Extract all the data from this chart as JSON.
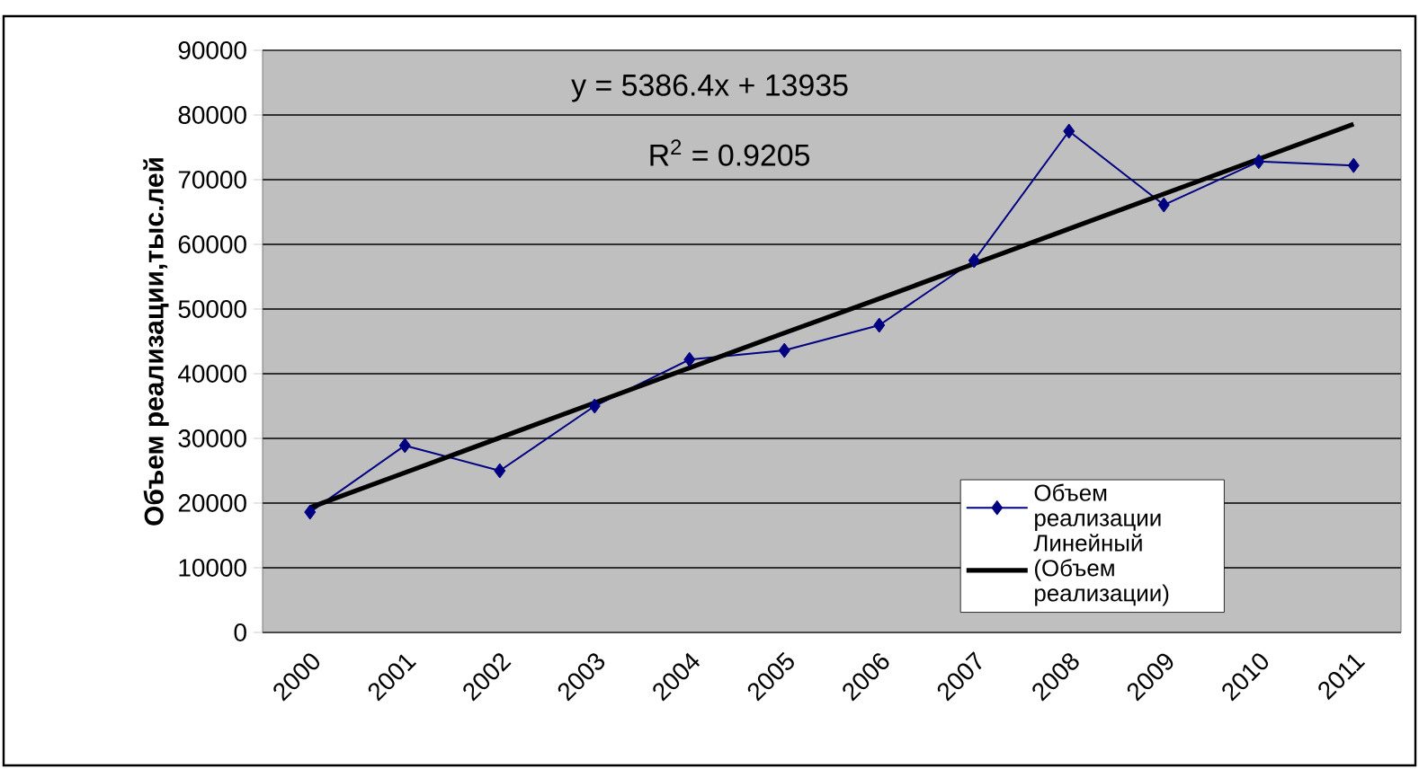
{
  "chart_data": {
    "type": "line",
    "ylabel": "Объем реализации,тыс.лей",
    "categories": [
      "2000",
      "2001",
      "2002",
      "2003",
      "2004",
      "2005",
      "2006",
      "2007",
      "2008",
      "2009",
      "2010",
      "2011"
    ],
    "series": [
      {
        "name": "Объем реализации",
        "color": "#000080",
        "marker": "diamond",
        "values": [
          18600,
          28900,
          25000,
          35000,
          42200,
          43600,
          47500,
          57500,
          77500,
          66100,
          72800,
          72200
        ]
      },
      {
        "name": "Линейный (Объем реализации)",
        "color": "#000000",
        "marker": "none",
        "values": [
          19300,
          24700,
          30100,
          35500,
          40900,
          46300,
          51600,
          57000,
          62400,
          67800,
          73200,
          78600
        ]
      }
    ],
    "ylim": [
      0,
      90000
    ],
    "yticks": [
      0,
      10000,
      20000,
      30000,
      40000,
      50000,
      60000,
      70000,
      80000,
      90000
    ],
    "grid": "y",
    "legend": "bottom right",
    "annotations": [
      "y = 5386.4x + 13935",
      "R$^{2}$ = 0.9205"
    ]
  }
}
